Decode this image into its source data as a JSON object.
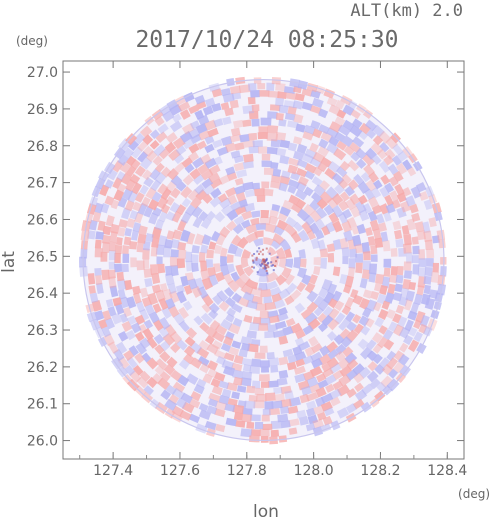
{
  "chart_data": {
    "type": "heatmap",
    "title": "2017/10/24 08:25:30",
    "altitude_label": "ALT(km) 2.0",
    "xlabel": "lon",
    "ylabel": "lat",
    "x_unit": "(deg)",
    "y_unit": "(deg)",
    "xlim": [
      127.25,
      128.45
    ],
    "ylim": [
      25.95,
      27.03
    ],
    "x_ticks": [
      "127.4",
      "127.6",
      "127.8",
      "128.0",
      "128.2",
      "128.4"
    ],
    "y_ticks": [
      "26.0",
      "26.1",
      "26.2",
      "26.3",
      "26.4",
      "26.5",
      "26.6",
      "26.7",
      "26.8",
      "26.9",
      "27.0"
    ],
    "radar_center": {
      "lon": 127.85,
      "lat": 26.49
    },
    "radar_radius_deg": 0.54,
    "colors": {
      "positive": "#f6a9a9",
      "negative": "#b3b3f3",
      "axis": "#777777"
    },
    "grid": false,
    "legend": "none"
  }
}
